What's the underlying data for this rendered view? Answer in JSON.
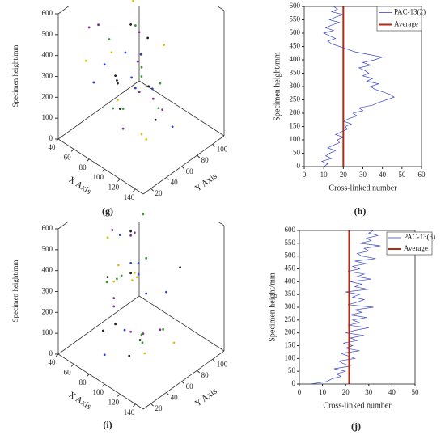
{
  "chart_data": [
    {
      "type": "scatter3d",
      "panel_label": "(g)",
      "xlabel": "X Axis",
      "ylabel": "Y Axis",
      "zlabel": "Specimen height/mm",
      "xlim": [
        40,
        150
      ],
      "ylim": [
        10,
        115
      ],
      "zlim": [
        0,
        600
      ],
      "xticks": [
        40,
        60,
        80,
        100,
        120,
        140
      ],
      "yticks": [
        20,
        40,
        60,
        80,
        100
      ],
      "zticks": [
        0,
        100,
        200,
        300,
        400,
        500,
        600
      ],
      "series": [
        {
          "color": "#7b2f8e",
          "x": [
            62,
            88,
            104,
            75,
            118,
            95,
            70,
            110
          ],
          "y": [
            40,
            65,
            30,
            80,
            55,
            90,
            20,
            45
          ],
          "z": [
            520,
            340,
            150,
            410,
            260,
            60,
            580,
            300
          ]
        },
        {
          "color": "#3a9a3a",
          "x": [
            80,
            99,
            66,
            122,
            91,
            73,
            108,
            85
          ],
          "y": [
            70,
            35,
            55,
            60,
            25,
            85,
            50,
            95
          ],
          "z": [
            480,
            220,
            90,
            330,
            560,
            180,
            400,
            30
          ]
        },
        {
          "color": "#d4c21a",
          "x": [
            58,
            112,
            96,
            83,
            70,
            126,
            101,
            77
          ],
          "y": [
            28,
            75,
            62,
            44,
            88,
            38,
            18,
            70
          ],
          "z": [
            370,
            450,
            20,
            200,
            270,
            130,
            540,
            590
          ]
        },
        {
          "color": "#2a3fc9",
          "x": [
            93,
            68,
            115,
            86,
            104,
            79,
            120,
            60
          ],
          "y": [
            52,
            82,
            42,
            24,
            68,
            58,
            78,
            36
          ],
          "z": [
            310,
            120,
            500,
            430,
            240,
            380,
            70,
            250
          ]
        },
        {
          "color": "#222222",
          "x": [
            85,
            109,
            72,
            97,
            64,
            118,
            90,
            102
          ],
          "y": [
            45,
            58,
            72,
            30,
            62,
            48,
            86,
            22
          ],
          "z": [
            160,
            290,
            460,
            350,
            200,
            570,
            10,
            420
          ]
        }
      ]
    },
    {
      "type": "line",
      "panel_label": "(h)",
      "xlabel": "Cross-linked number",
      "ylabel": "Specimen height/mm",
      "xlim": [
        0,
        60
      ],
      "xticks": [
        0,
        10,
        20,
        30,
        40,
        50,
        60
      ],
      "ylim": [
        0,
        600
      ],
      "yticks": [
        0,
        50,
        100,
        150,
        200,
        250,
        300,
        350,
        400,
        450,
        500,
        550,
        600
      ],
      "legend": "upper right",
      "series": [
        {
          "name": "PAC-13(2)",
          "color": "#3a44c8",
          "y": [
            0,
            10,
            20,
            30,
            40,
            50,
            60,
            70,
            80,
            90,
            100,
            110,
            120,
            130,
            140,
            150,
            160,
            170,
            180,
            190,
            200,
            210,
            220,
            230,
            240,
            250,
            260,
            270,
            280,
            290,
            300,
            310,
            320,
            330,
            340,
            350,
            360,
            370,
            380,
            390,
            400,
            410,
            420,
            430,
            440,
            450,
            460,
            470,
            480,
            490,
            500,
            510,
            520,
            530,
            540,
            550,
            560,
            570,
            580,
            590,
            600
          ],
          "values": [
            10,
            12,
            9,
            14,
            11,
            13,
            16,
            12,
            15,
            18,
            17,
            20,
            16,
            19,
            22,
            21,
            24,
            20,
            23,
            27,
            25,
            30,
            28,
            35,
            38,
            42,
            46,
            44,
            40,
            36,
            34,
            38,
            32,
            35,
            30,
            33,
            31,
            28,
            34,
            30,
            36,
            40,
            33,
            26,
            22,
            18,
            14,
            12,
            16,
            13,
            10,
            15,
            11,
            14,
            18,
            13,
            16,
            20,
            14,
            17,
            15
          ]
        },
        {
          "name": "Average",
          "color": "#b22a10",
          "y": [
            0,
            600
          ],
          "values": [
            20,
            20
          ]
        }
      ]
    },
    {
      "type": "scatter3d",
      "panel_label": "(i)",
      "xlabel": "X Axis",
      "ylabel": "Y Axis",
      "zlabel": "Specimen height/mm",
      "xlim": [
        40,
        150
      ],
      "ylim": [
        10,
        115
      ],
      "zlim": [
        0,
        600
      ],
      "xticks": [
        40,
        60,
        80,
        100,
        120,
        140
      ],
      "yticks": [
        20,
        40,
        60,
        80,
        100
      ],
      "zticks": [
        0,
        100,
        200,
        300,
        400,
        500,
        600
      ],
      "series": [
        {
          "color": "#7b2f8e",
          "x": [
            70,
            92,
            110,
            64,
            120,
            84,
            100,
            76
          ],
          "y": [
            50,
            30,
            72,
            85,
            40,
            60,
            22,
            68
          ],
          "z": [
            560,
            300,
            120,
            440,
            210,
            80,
            380,
            500
          ]
        },
        {
          "color": "#3a9a3a",
          "x": [
            88,
            60,
            116,
            96,
            74,
            124,
            82,
            106
          ],
          "y": [
            25,
            66,
            48,
            90,
            58,
            35,
            78,
            52
          ],
          "z": [
            420,
            260,
            540,
            40,
            330,
            190,
            590,
            140
          ]
        },
        {
          "color": "#d4c21a",
          "x": [
            66,
            102,
            90,
            118,
            78,
            58,
            112,
            94
          ],
          "y": [
            80,
            20,
            62,
            44,
            36,
            70,
            88,
            55
          ],
          "z": [
            230,
            470,
            350,
            100,
            580,
            310,
            20,
            400
          ]
        },
        {
          "color": "#2a3fc9",
          "x": [
            98,
            72,
            84,
            126,
            62,
            108,
            90,
            114
          ],
          "y": [
            38,
            58,
            26,
            64,
            92,
            46,
            74,
            30
          ],
          "z": [
            180,
            520,
            60,
            360,
            270,
            450,
            240,
            560
          ]
        },
        {
          "color": "#222222",
          "x": [
            80,
            114,
            68,
            100,
            92,
            122,
            74,
            58
          ],
          "y": [
            64,
            42,
            76,
            24,
            50,
            86,
            34,
            56
          ],
          "z": [
            340,
            160,
            480,
            250,
            10,
            410,
            130,
            290
          ]
        }
      ]
    },
    {
      "type": "line",
      "panel_label": "(j)",
      "xlabel": "Cross-linked number",
      "ylabel": "Specimen height/mm",
      "xlim": [
        0,
        50
      ],
      "xticks": [
        0,
        10,
        20,
        30,
        40,
        50
      ],
      "ylim": [
        0,
        600
      ],
      "yticks": [
        0,
        50,
        100,
        150,
        200,
        250,
        300,
        350,
        400,
        450,
        500,
        550,
        600
      ],
      "legend": "upper right",
      "series": [
        {
          "name": "PAC-13(3)",
          "color": "#3a44c8",
          "y": [
            0,
            10,
            20,
            30,
            40,
            50,
            60,
            70,
            80,
            90,
            100,
            110,
            120,
            130,
            140,
            150,
            160,
            170,
            180,
            190,
            200,
            210,
            220,
            230,
            240,
            250,
            260,
            270,
            280,
            290,
            300,
            310,
            320,
            330,
            340,
            350,
            360,
            370,
            380,
            390,
            400,
            410,
            420,
            430,
            440,
            450,
            460,
            470,
            480,
            490,
            500,
            510,
            520,
            530,
            540,
            550,
            560,
            570,
            580,
            590,
            600
          ],
          "values": [
            5,
            12,
            14,
            18,
            16,
            20,
            15,
            22,
            19,
            17,
            24,
            21,
            18,
            26,
            20,
            23,
            19,
            25,
            22,
            28,
            20,
            24,
            30,
            21,
            26,
            23,
            29,
            22,
            27,
            24,
            32,
            21,
            25,
            28,
            23,
            26,
            20,
            30,
            24,
            27,
            22,
            31,
            25,
            28,
            21,
            26,
            23,
            29,
            24,
            33,
            27,
            25,
            30,
            28,
            35,
            26,
            31,
            29,
            34,
            30,
            32
          ]
        },
        {
          "name": "Average",
          "color": "#b22a10",
          "y": [
            0,
            600
          ],
          "values": [
            21.5,
            21.5
          ]
        }
      ]
    }
  ]
}
